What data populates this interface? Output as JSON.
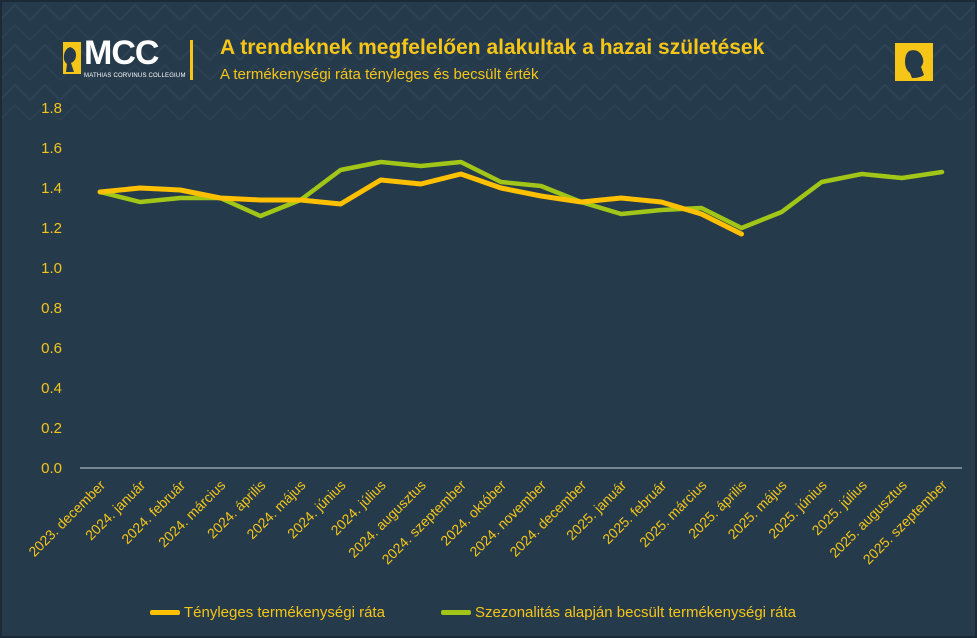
{
  "header": {
    "title": "A trendeknek megfelelően alakultak a hazai születések",
    "subtitle": "A termékenységi ráta tényleges és becsült érték",
    "logo_text": "MCC",
    "logo_subtext": "MATHIAS CORVINUS COLLEGIUM"
  },
  "colors": {
    "background": "#253a4b",
    "accent": "#f5c518",
    "actual": "#ffc000",
    "estimated": "#a2c617"
  },
  "chart_data": {
    "type": "line",
    "title": "A trendeknek megfelelően alakultak a hazai születések",
    "subtitle": "A termékenységi ráta tényleges és becsült érték",
    "categories": [
      "2023. december",
      "2024. január",
      "2024. február",
      "2024. március",
      "2024. április",
      "2024. május",
      "2024. június",
      "2024. július",
      "2024. augusztus",
      "2024. szeptember",
      "2024. október",
      "2024. november",
      "2024. december",
      "2025. január",
      "2025. február",
      "2025. március",
      "2025. április",
      "2025. május",
      "2025. június",
      "2025. július",
      "2025. augusztus",
      "2025. szeptember"
    ],
    "series": [
      {
        "name": "Tényleges termékenységi ráta",
        "color": "#ffc000",
        "values": [
          1.38,
          1.4,
          1.39,
          1.35,
          1.34,
          1.34,
          1.32,
          1.44,
          1.42,
          1.47,
          1.4,
          1.36,
          1.33,
          1.35,
          1.33,
          1.27,
          1.17,
          null,
          null,
          null,
          null,
          null
        ]
      },
      {
        "name": "Szezonalitás alapján becsült termékenységi ráta",
        "color": "#a2c617",
        "values": [
          1.38,
          1.33,
          1.35,
          1.35,
          1.26,
          1.34,
          1.49,
          1.53,
          1.51,
          1.53,
          1.43,
          1.41,
          1.33,
          1.27,
          1.29,
          1.3,
          1.2,
          1.28,
          1.43,
          1.47,
          1.45,
          1.48
        ]
      }
    ],
    "y_ticks": [
      "0.0",
      "0.2",
      "0.4",
      "0.6",
      "0.8",
      "1.0",
      "1.2",
      "1.4",
      "1.6",
      "1.8"
    ],
    "ylim": [
      0,
      1.8
    ],
    "grid": false,
    "legend": "bottom"
  }
}
